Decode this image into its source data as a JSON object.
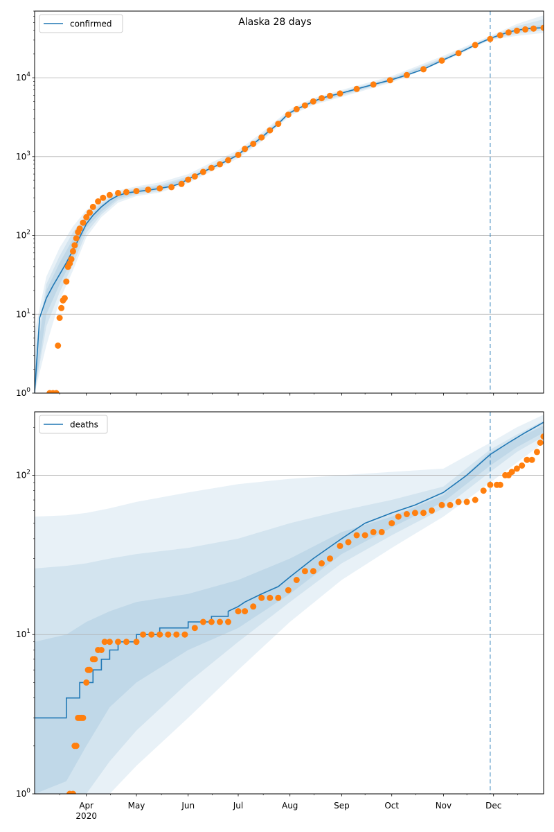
{
  "chart_data": [
    {
      "type": "line",
      "title": "Alaska 28 days",
      "yscale": "log",
      "ylim": [
        1,
        70000
      ],
      "xlim": [
        "2020-03-01",
        "2020-12-31"
      ],
      "grid": "y-major",
      "legend": {
        "placement": "top-left",
        "entries": [
          {
            "label": "confirmed"
          }
        ]
      },
      "yticks": [
        {
          "value": 1,
          "base": "10",
          "exp": "0"
        },
        {
          "value": 10,
          "base": "10",
          "exp": "1"
        },
        {
          "value": 100,
          "base": "10",
          "exp": "2"
        },
        {
          "value": 1000,
          "base": "10",
          "exp": "3"
        },
        {
          "value": 10000,
          "base": "10",
          "exp": "4"
        }
      ],
      "vline_date": "2020-11-29",
      "colors": {
        "model": "#1f77b4",
        "observed": "#ff7f0e",
        "band": "#1f77b4",
        "vline": "#1f77b4"
      },
      "model": {
        "x": [
          "2020-03-01",
          "2020-03-04",
          "2020-03-08",
          "2020-03-12",
          "2020-03-16",
          "2020-03-20",
          "2020-03-24",
          "2020-03-28",
          "2020-04-01",
          "2020-04-05",
          "2020-04-10",
          "2020-04-15",
          "2020-04-20",
          "2020-04-25",
          "2020-05-01",
          "2020-05-08",
          "2020-05-15",
          "2020-05-22",
          "2020-05-28",
          "2020-06-01",
          "2020-06-05",
          "2020-06-10",
          "2020-06-15",
          "2020-06-20",
          "2020-06-25",
          "2020-07-01",
          "2020-07-05",
          "2020-07-10",
          "2020-07-15",
          "2020-07-20",
          "2020-07-25",
          "2020-07-31",
          "2020-08-05",
          "2020-08-10",
          "2020-08-15",
          "2020-08-20",
          "2020-08-25",
          "2020-08-31",
          "2020-09-10",
          "2020-09-20",
          "2020-09-30",
          "2020-10-10",
          "2020-10-20",
          "2020-10-31",
          "2020-11-10",
          "2020-11-20",
          "2020-11-29",
          "2020-12-05",
          "2020-12-10",
          "2020-12-15",
          "2020-12-20",
          "2020-12-25",
          "2020-12-31"
        ],
        "y": [
          1,
          9,
          16,
          23,
          32,
          45,
          65,
          95,
          140,
          180,
          230,
          280,
          320,
          345,
          360,
          375,
          395,
          420,
          460,
          520,
          570,
          640,
          720,
          800,
          900,
          1050,
          1250,
          1450,
          1750,
          2150,
          2600,
          3500,
          4000,
          4450,
          5000,
          5500,
          5900,
          6300,
          7200,
          8200,
          9300,
          10800,
          12800,
          16500,
          20500,
          26000,
          31500,
          35000,
          38000,
          40000,
          41500,
          42500,
          43000
        ]
      },
      "observed": {
        "x": [
          "2020-03-10",
          "2020-03-12",
          "2020-03-14",
          "2020-03-15",
          "2020-03-16",
          "2020-03-17",
          "2020-03-18",
          "2020-03-19",
          "2020-03-20",
          "2020-03-21",
          "2020-03-22",
          "2020-03-23",
          "2020-03-24",
          "2020-03-25",
          "2020-03-26",
          "2020-03-27",
          "2020-03-28",
          "2020-03-30",
          "2020-04-01",
          "2020-04-03",
          "2020-04-05",
          "2020-04-08",
          "2020-04-11",
          "2020-04-15",
          "2020-04-20",
          "2020-04-25",
          "2020-05-01",
          "2020-05-08",
          "2020-05-15",
          "2020-05-22",
          "2020-05-28",
          "2020-06-01",
          "2020-06-05",
          "2020-06-10",
          "2020-06-15",
          "2020-06-20",
          "2020-06-25",
          "2020-07-01",
          "2020-07-05",
          "2020-07-10",
          "2020-07-15",
          "2020-07-20",
          "2020-07-25",
          "2020-07-31",
          "2020-08-05",
          "2020-08-10",
          "2020-08-15",
          "2020-08-20",
          "2020-08-25",
          "2020-08-31",
          "2020-09-10",
          "2020-09-20",
          "2020-09-30",
          "2020-10-10",
          "2020-10-20",
          "2020-10-31",
          "2020-11-10",
          "2020-11-20",
          "2020-11-29",
          "2020-12-05",
          "2020-12-10",
          "2020-12-15",
          "2020-12-20",
          "2020-12-25",
          "2020-12-31"
        ],
        "y": [
          1,
          1,
          1,
          4,
          9,
          12,
          15,
          16,
          26,
          40,
          44,
          50,
          63,
          75,
          92,
          110,
          122,
          145,
          170,
          195,
          230,
          270,
          300,
          325,
          345,
          355,
          365,
          380,
          395,
          410,
          450,
          510,
          560,
          640,
          720,
          800,
          900,
          1050,
          1250,
          1450,
          1750,
          2150,
          2600,
          3400,
          4000,
          4450,
          5000,
          5500,
          5900,
          6300,
          7200,
          8200,
          9300,
          10800,
          12800,
          16500,
          20500,
          26000,
          31000,
          34500,
          37500,
          39500,
          41000,
          42000,
          43000
        ]
      },
      "bands": [
        {
          "x": [
            "2020-03-01",
            "2020-03-08",
            "2020-03-16",
            "2020-03-24",
            "2020-04-01",
            "2020-04-10",
            "2020-04-20",
            "2020-05-01",
            "2020-05-15",
            "2020-06-01",
            "2020-06-15",
            "2020-07-01",
            "2020-07-15",
            "2020-08-01",
            "2020-08-15",
            "2020-09-01",
            "2020-10-01",
            "2020-11-01",
            "2020-11-29",
            "2020-12-15",
            "2020-12-31"
          ],
          "lower": [
            1,
            4,
            15,
            36,
            95,
            170,
            260,
            315,
            350,
            460,
            650,
            950,
            1550,
            3300,
            4500,
            5700,
            8700,
            16000,
            30000,
            34000,
            37000
          ],
          "upper": [
            6,
            30,
            70,
            130,
            210,
            280,
            370,
            420,
            470,
            600,
            840,
            1200,
            2000,
            4000,
            5500,
            7000,
            10500,
            19000,
            34000,
            48000,
            62000
          ]
        },
        {
          "x": [
            "2020-03-01",
            "2020-03-08",
            "2020-03-16",
            "2020-03-24",
            "2020-04-01",
            "2020-04-10",
            "2020-04-20",
            "2020-05-01",
            "2020-05-15",
            "2020-06-01",
            "2020-06-15",
            "2020-07-01",
            "2020-07-15",
            "2020-08-01",
            "2020-08-15",
            "2020-09-01",
            "2020-10-01",
            "2020-11-01",
            "2020-11-29",
            "2020-12-15",
            "2020-12-31"
          ],
          "lower": [
            1,
            7,
            19,
            43,
            108,
            185,
            280,
            330,
            365,
            485,
            685,
            1000,
            1620,
            3450,
            4700,
            5950,
            9000,
            16500,
            30500,
            36000,
            40000
          ],
          "upper": [
            3,
            24,
            55,
            110,
            180,
            260,
            350,
            400,
            440,
            560,
            780,
            1120,
            1880,
            3800,
            5300,
            6700,
            10000,
            18000,
            33000,
            45000,
            55000
          ]
        },
        {
          "x": [
            "2020-03-01",
            "2020-03-08",
            "2020-03-16",
            "2020-03-24",
            "2020-04-01",
            "2020-04-10",
            "2020-04-20",
            "2020-05-01",
            "2020-05-15",
            "2020-06-01",
            "2020-06-15",
            "2020-07-01",
            "2020-07-15",
            "2020-08-01",
            "2020-08-15",
            "2020-09-01",
            "2020-10-01",
            "2020-11-01",
            "2020-11-29",
            "2020-12-15",
            "2020-12-31"
          ],
          "lower": [
            1,
            10,
            24,
            52,
            125,
            200,
            295,
            345,
            380,
            500,
            710,
            1030,
            1670,
            3550,
            4850,
            6100,
            9200,
            16800,
            31000,
            38000,
            42000
          ],
          "upper": [
            2,
            20,
            45,
            90,
            160,
            245,
            340,
            385,
            420,
            535,
            745,
            1080,
            1800,
            3700,
            5150,
            6500,
            9700,
            17500,
            32200,
            42000,
            47000
          ]
        }
      ]
    },
    {
      "type": "line",
      "title": "",
      "yscale": "log",
      "ylim": [
        1,
        250
      ],
      "xlim": [
        "2020-03-01",
        "2020-12-31"
      ],
      "grid": "y-major",
      "legend": {
        "placement": "top-left",
        "entries": [
          {
            "label": "deaths"
          }
        ]
      },
      "yticks": [
        {
          "value": 1,
          "base": "10",
          "exp": "0"
        },
        {
          "value": 10,
          "base": "10",
          "exp": "1"
        },
        {
          "value": 100,
          "base": "10",
          "exp": "2"
        }
      ],
      "xticks": [
        {
          "date": "2020-04-01",
          "label": "Apr",
          "sublabel": "2020"
        },
        {
          "date": "2020-05-01",
          "label": "May",
          "sublabel": ""
        },
        {
          "date": "2020-06-01",
          "label": "Jun",
          "sublabel": ""
        },
        {
          "date": "2020-07-01",
          "label": "Jul",
          "sublabel": ""
        },
        {
          "date": "2020-08-01",
          "label": "Aug",
          "sublabel": ""
        },
        {
          "date": "2020-09-01",
          "label": "Sep",
          "sublabel": ""
        },
        {
          "date": "2020-10-01",
          "label": "Oct",
          "sublabel": ""
        },
        {
          "date": "2020-11-01",
          "label": "Nov",
          "sublabel": ""
        },
        {
          "date": "2020-12-01",
          "label": "Dec",
          "sublabel": ""
        }
      ],
      "vline_date": "2020-11-29",
      "colors": {
        "model": "#1f77b4",
        "observed": "#ff7f0e",
        "band": "#1f77b4",
        "vline": "#1f77b4"
      },
      "model": {
        "x": [
          "2020-03-01",
          "2020-03-20",
          "2020-03-20",
          "2020-03-28",
          "2020-03-28",
          "2020-04-05",
          "2020-04-05",
          "2020-04-10",
          "2020-04-10",
          "2020-04-15",
          "2020-04-15",
          "2020-04-20",
          "2020-04-20",
          "2020-05-01",
          "2020-05-01",
          "2020-05-15",
          "2020-05-15",
          "2020-06-01",
          "2020-06-01",
          "2020-06-15",
          "2020-06-15",
          "2020-06-25",
          "2020-06-25",
          "2020-07-01",
          "2020-07-05",
          "2020-07-15",
          "2020-07-25",
          "2020-08-01",
          "2020-08-15",
          "2020-09-01",
          "2020-09-15",
          "2020-10-01",
          "2020-10-15",
          "2020-11-01",
          "2020-11-15",
          "2020-11-29",
          "2020-12-10",
          "2020-12-20",
          "2020-12-31"
        ],
        "y": [
          3,
          3,
          4,
          4,
          5,
          5,
          6,
          6,
          7,
          7,
          8,
          8,
          9,
          9,
          10,
          10,
          11,
          11,
          12,
          12,
          13,
          13,
          14,
          15,
          16,
          18,
          20,
          23,
          30,
          40,
          50,
          58,
          65,
          78,
          100,
          135,
          160,
          185,
          215
        ]
      },
      "observed": {
        "x": [
          "2020-03-22",
          "2020-03-24",
          "2020-03-25",
          "2020-03-26",
          "2020-03-27",
          "2020-03-28",
          "2020-03-29",
          "2020-03-30",
          "2020-04-01",
          "2020-04-02",
          "2020-04-03",
          "2020-04-05",
          "2020-04-06",
          "2020-04-08",
          "2020-04-10",
          "2020-04-12",
          "2020-04-15",
          "2020-04-20",
          "2020-04-25",
          "2020-05-01",
          "2020-05-05",
          "2020-05-10",
          "2020-05-15",
          "2020-05-20",
          "2020-05-25",
          "2020-05-30",
          "2020-06-05",
          "2020-06-10",
          "2020-06-15",
          "2020-06-20",
          "2020-06-25",
          "2020-07-01",
          "2020-07-05",
          "2020-07-10",
          "2020-07-15",
          "2020-07-20",
          "2020-07-25",
          "2020-07-31",
          "2020-08-05",
          "2020-08-10",
          "2020-08-15",
          "2020-08-20",
          "2020-08-25",
          "2020-08-31",
          "2020-09-05",
          "2020-09-10",
          "2020-09-15",
          "2020-09-20",
          "2020-09-25",
          "2020-10-01",
          "2020-10-05",
          "2020-10-10",
          "2020-10-15",
          "2020-10-20",
          "2020-10-25",
          "2020-10-31",
          "2020-11-05",
          "2020-11-10",
          "2020-11-15",
          "2020-11-20",
          "2020-11-25",
          "2020-11-29",
          "2020-12-03",
          "2020-12-05",
          "2020-12-08",
          "2020-12-10",
          "2020-12-12",
          "2020-12-15",
          "2020-12-18",
          "2020-12-21",
          "2020-12-24",
          "2020-12-27",
          "2020-12-29",
          "2020-12-31"
        ],
        "y": [
          1,
          1,
          2,
          2,
          3,
          3,
          3,
          3,
          5,
          6,
          6,
          7,
          7,
          8,
          8,
          9,
          9,
          9,
          9,
          9,
          10,
          10,
          10,
          10,
          10,
          10,
          11,
          12,
          12,
          12,
          12,
          14,
          14,
          15,
          17,
          17,
          17,
          19,
          22,
          25,
          25,
          28,
          30,
          36,
          38,
          42,
          42,
          44,
          44,
          50,
          55,
          57,
          58,
          58,
          60,
          65,
          65,
          68,
          68,
          70,
          80,
          87,
          87,
          87,
          100,
          100,
          105,
          110,
          115,
          125,
          125,
          140,
          160,
          175
        ]
      },
      "bands": [
        {
          "x": [
            "2020-03-01",
            "2020-03-20",
            "2020-04-01",
            "2020-04-15",
            "2020-05-01",
            "2020-06-01",
            "2020-07-01",
            "2020-08-01",
            "2020-09-01",
            "2020-10-01",
            "2020-11-01",
            "2020-11-29",
            "2020-12-15",
            "2020-12-31"
          ],
          "lower": [
            0.6,
            0.7,
            0.8,
            1.0,
            1.5,
            3.0,
            6.0,
            12,
            22,
            35,
            55,
            90,
            120,
            160
          ],
          "upper": [
            55,
            56,
            58,
            62,
            68,
            78,
            88,
            95,
            100,
            105,
            110,
            160,
            200,
            240
          ]
        },
        {
          "x": [
            "2020-03-01",
            "2020-03-20",
            "2020-04-01",
            "2020-04-15",
            "2020-05-01",
            "2020-06-01",
            "2020-07-01",
            "2020-08-01",
            "2020-09-01",
            "2020-10-01",
            "2020-11-01",
            "2020-11-29",
            "2020-12-15",
            "2020-12-31"
          ],
          "lower": [
            0.8,
            0.9,
            1.0,
            1.6,
            2.5,
            5.0,
            9.0,
            16,
            28,
            42,
            62,
            105,
            140,
            175
          ],
          "upper": [
            26,
            27,
            28,
            30,
            32,
            35,
            40,
            50,
            60,
            70,
            85,
            145,
            180,
            220
          ]
        },
        {
          "x": [
            "2020-03-01",
            "2020-03-20",
            "2020-04-01",
            "2020-04-15",
            "2020-05-01",
            "2020-06-01",
            "2020-07-01",
            "2020-08-01",
            "2020-09-01",
            "2020-10-01",
            "2020-11-01",
            "2020-11-29",
            "2020-12-15",
            "2020-12-31"
          ],
          "lower": [
            1.0,
            1.2,
            2.0,
            3.5,
            5.0,
            8.0,
            11,
            18,
            32,
            47,
            68,
            115,
            150,
            185
          ],
          "upper": [
            9,
            10,
            12,
            14,
            16,
            18,
            22,
            30,
            44,
            55,
            75,
            140,
            170,
            205
          ]
        }
      ]
    }
  ]
}
